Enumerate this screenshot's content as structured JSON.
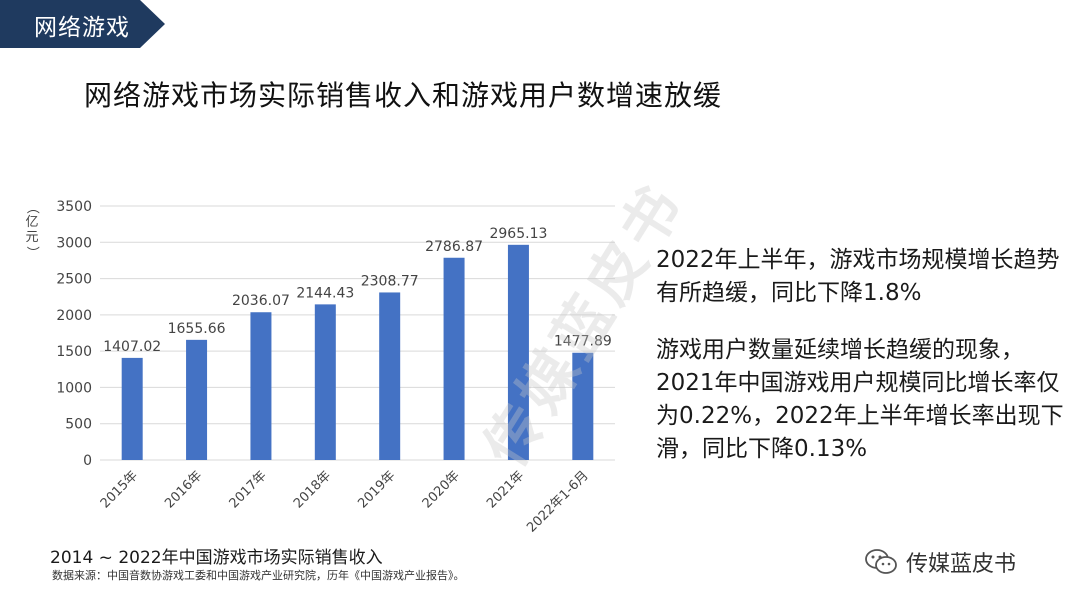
{
  "section_tag": {
    "label": "网络游戏",
    "color": "#1f3a5f"
  },
  "title": "网络游戏市场实际销售收入和游戏用户数增速放缓",
  "chart_data": {
    "type": "bar",
    "categories": [
      "2015年",
      "2016年",
      "2017年",
      "2018年",
      "2019年",
      "2020年",
      "2021年",
      "2022年1-6月"
    ],
    "values": [
      1407.02,
      1655.66,
      2036.07,
      2144.43,
      2308.77,
      2786.87,
      2965.13,
      1477.89
    ],
    "value_labels": [
      "1407.02",
      "1655.66",
      "2036.07",
      "2144.43",
      "2308.77",
      "2786.87",
      "2965.13",
      "1477.89"
    ],
    "ylabel": "（亿元）",
    "ylim": [
      0,
      3500
    ],
    "yticks": [
      0,
      500,
      1000,
      1500,
      2000,
      2500,
      3000,
      3500
    ],
    "grid": true,
    "bar_color": "#4472c4"
  },
  "caption": "2014 ~ 2022年中国游戏市场实际销售收入",
  "source": "数据来源：中国音数协游戏工委和中国游戏产业研究院，历年《中国游戏产业报告》。",
  "notes": [
    "2022年上半年，游戏市场规模增长趋势有所趋缓，同比下降1.8%",
    "游戏用户数量延续增长趋缓的现象，2021年中国游戏用户规模同比增长率仅为0.22%，2022年上半年增长率出现下滑，同比下降0.13%"
  ],
  "watermark": "传媒蓝皮书",
  "brand": {
    "name": "传媒蓝皮书",
    "icon": "wechat-icon"
  }
}
